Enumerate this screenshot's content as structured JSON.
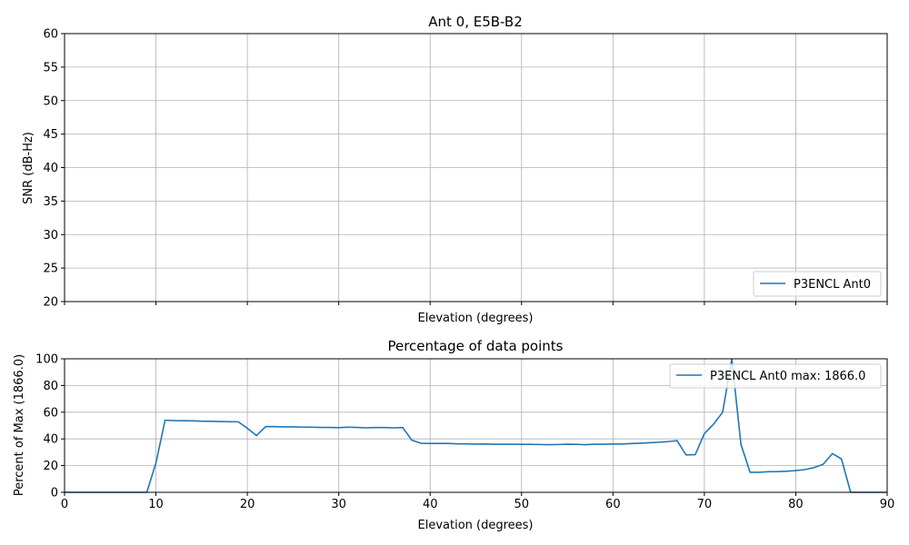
{
  "colors": {
    "series": "#1f77b4",
    "grid": "#b0b0b0"
  },
  "chart_data": [
    {
      "type": "line",
      "title": "Ant 0, E5B-B2",
      "xlabel": "Elevation (degrees)",
      "ylabel": "SNR (dB-Hz)",
      "xlim": [
        0,
        90
      ],
      "ylim": [
        20,
        60
      ],
      "xticks": [
        0,
        10,
        20,
        30,
        40,
        50,
        60,
        70,
        80,
        90
      ],
      "xtick_labels_visible": false,
      "yticks": [
        20,
        25,
        30,
        35,
        40,
        45,
        50,
        55,
        60
      ],
      "grid": true,
      "legend_position": "lower-right",
      "series": [
        {
          "name": "P3ENCL Ant0",
          "x": [],
          "y": []
        }
      ]
    },
    {
      "type": "line",
      "title": "Percentage of data points",
      "xlabel": "Elevation (degrees)",
      "ylabel": "Percent of Max (1866.0)",
      "xlim": [
        0,
        90
      ],
      "ylim": [
        0,
        100
      ],
      "xticks": [
        0,
        10,
        20,
        30,
        40,
        50,
        60,
        70,
        80,
        90
      ],
      "xtick_labels_visible": true,
      "yticks": [
        0,
        20,
        40,
        60,
        80,
        100
      ],
      "grid": true,
      "legend_position": "upper-right",
      "series": [
        {
          "name": "P3ENCL Ant0 max: 1866.0",
          "x": [
            0,
            1,
            2,
            3,
            4,
            5,
            6,
            7,
            8,
            9,
            10,
            11,
            12,
            13,
            14,
            15,
            16,
            17,
            18,
            19,
            20,
            21,
            22,
            23,
            24,
            25,
            26,
            27,
            28,
            29,
            30,
            31,
            32,
            33,
            34,
            35,
            36,
            37,
            38,
            39,
            40,
            41,
            42,
            43,
            44,
            45,
            46,
            47,
            48,
            49,
            50,
            51,
            52,
            53,
            54,
            55,
            56,
            57,
            58,
            59,
            60,
            61,
            62,
            63,
            64,
            65,
            66,
            67,
            68,
            69,
            70,
            71,
            72,
            73,
            74,
            75,
            76,
            77,
            78,
            79,
            80,
            81,
            82,
            83,
            84,
            85,
            86,
            87,
            88,
            89,
            90
          ],
          "y": [
            0,
            0,
            0,
            0,
            0,
            0,
            0,
            0,
            0,
            0,
            22,
            54,
            53.7,
            53.6,
            53.5,
            53.3,
            53.2,
            53,
            52.9,
            52.8,
            48,
            42.5,
            49.2,
            49.2,
            49,
            49,
            48.8,
            48.8,
            48.6,
            48.6,
            48.4,
            48.8,
            48.6,
            48.3,
            48.5,
            48.5,
            48.3,
            48.5,
            39,
            36.7,
            36.6,
            36.6,
            36.6,
            36.3,
            36.3,
            36.1,
            36.2,
            36,
            36,
            36,
            35.9,
            35.9,
            35.8,
            35.7,
            35.8,
            36,
            35.9,
            35.7,
            36,
            36,
            36.2,
            36.2,
            36.5,
            36.8,
            37.1,
            37.5,
            38,
            38.7,
            28,
            28.2,
            44,
            51,
            60,
            100,
            36,
            15,
            15,
            15.4,
            15.5,
            15.8,
            16.3,
            17,
            18.5,
            21,
            29,
            25,
            0,
            0,
            0,
            0,
            0
          ]
        }
      ]
    }
  ]
}
